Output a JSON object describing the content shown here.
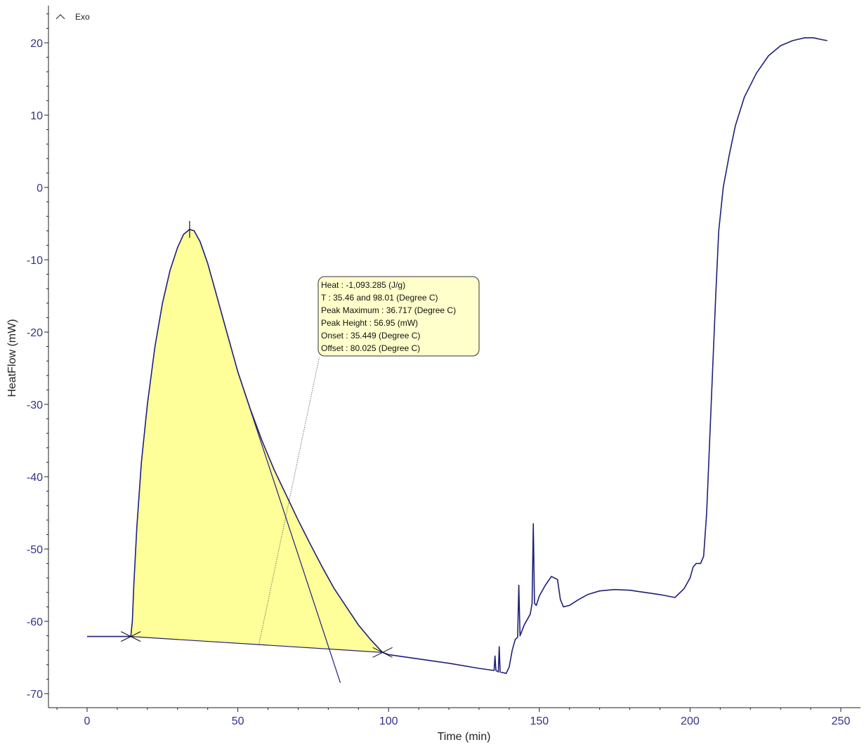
{
  "chart_data": {
    "type": "line",
    "xlabel": "Time (min)",
    "ylabel": "HeatFlow (mW)",
    "xlim": [
      -12,
      256
    ],
    "ylim": [
      -72,
      25
    ],
    "x_ticks": [
      0,
      50,
      100,
      150,
      200,
      250
    ],
    "y_ticks": [
      20,
      10,
      0,
      -10,
      -20,
      -30,
      -40,
      -50,
      -60,
      -70
    ],
    "x_tick_labels": [
      "0",
      "50",
      "100",
      "150",
      "200",
      "250"
    ],
    "y_tick_labels": [
      "20",
      "10",
      "0",
      "-10",
      "-20",
      "-30",
      "-40",
      "-50",
      "-60",
      "-70"
    ],
    "grid": false,
    "exo_label": "Exo",
    "series": [
      {
        "color": "#1f1f7a",
        "points": [
          [
            0,
            -62.1
          ],
          [
            14.5,
            -62.1
          ],
          [
            15,
            -60
          ],
          [
            15.5,
            -55
          ],
          [
            16.5,
            -47
          ],
          [
            18,
            -38
          ],
          [
            20,
            -30
          ],
          [
            22.5,
            -22
          ],
          [
            25,
            -16
          ],
          [
            27.5,
            -11.5
          ],
          [
            30,
            -8.3
          ],
          [
            32,
            -6.5
          ],
          [
            34,
            -5.8
          ],
          [
            35.5,
            -6.0
          ],
          [
            37.5,
            -7.5
          ],
          [
            40,
            -10.5
          ],
          [
            43,
            -15
          ],
          [
            46,
            -19.5
          ],
          [
            50,
            -25.5
          ],
          [
            54,
            -30.5
          ],
          [
            58,
            -35
          ],
          [
            62,
            -39
          ],
          [
            66,
            -42.5
          ],
          [
            70,
            -46
          ],
          [
            74,
            -49.3
          ],
          [
            78,
            -52.5
          ],
          [
            82,
            -55.5
          ],
          [
            86,
            -58
          ],
          [
            90,
            -60.5
          ],
          [
            94,
            -62.5
          ],
          [
            98,
            -64.3
          ],
          [
            100,
            -64.6
          ],
          [
            110,
            -65.2
          ],
          [
            120,
            -65.8
          ],
          [
            130,
            -66.5
          ],
          [
            135,
            -66.8
          ],
          [
            135.3,
            -64.8
          ],
          [
            135.6,
            -66.8
          ],
          [
            136.4,
            -67.0
          ],
          [
            136.7,
            -63.5
          ],
          [
            137,
            -67.0
          ],
          [
            138,
            -67.1
          ],
          [
            139,
            -67.2
          ],
          [
            140,
            -66.3
          ],
          [
            141,
            -64
          ],
          [
            142,
            -62.5
          ],
          [
            142.8,
            -62.2
          ],
          [
            143.2,
            -55
          ],
          [
            143.6,
            -62
          ],
          [
            145,
            -60.5
          ],
          [
            147,
            -59
          ],
          [
            147.6,
            -57.5
          ],
          [
            148,
            -46.5
          ],
          [
            148.4,
            -57.5
          ],
          [
            149,
            -57.8
          ],
          [
            150,
            -56.5
          ],
          [
            152,
            -55.0
          ],
          [
            154,
            -53.8
          ],
          [
            156,
            -54.2
          ],
          [
            157,
            -57
          ],
          [
            158,
            -58.0
          ],
          [
            160,
            -57.8
          ],
          [
            163,
            -57
          ],
          [
            166,
            -56.3
          ],
          [
            170,
            -55.8
          ],
          [
            175,
            -55.6
          ],
          [
            180,
            -55.7
          ],
          [
            185,
            -56.0
          ],
          [
            190,
            -56.3
          ],
          [
            195,
            -56.7
          ],
          [
            198,
            -55.5
          ],
          [
            200,
            -54
          ],
          [
            201,
            -52.5
          ],
          [
            202,
            -52.0
          ],
          [
            203.5,
            -52.0
          ],
          [
            204.5,
            -51
          ],
          [
            205.5,
            -45
          ],
          [
            206.5,
            -35
          ],
          [
            207.5,
            -25
          ],
          [
            208.5,
            -15
          ],
          [
            209.5,
            -6
          ],
          [
            211,
            0
          ],
          [
            213,
            4.5
          ],
          [
            215,
            8.5
          ],
          [
            218,
            12.5
          ],
          [
            222,
            15.8
          ],
          [
            226,
            18.2
          ],
          [
            230,
            19.6
          ],
          [
            234,
            20.3
          ],
          [
            238,
            20.7
          ],
          [
            241,
            20.7
          ],
          [
            243,
            20.5
          ],
          [
            245.5,
            20.3
          ]
        ]
      }
    ],
    "integration": {
      "fill_color": "#ffff99",
      "baseline_start": [
        14.5,
        -62.1
      ],
      "baseline_end": [
        98,
        -64.3
      ],
      "peak_marker": [
        34,
        -5.8
      ],
      "onset_tangent_from": [
        50,
        -25.5
      ],
      "onset_tangent_to": [
        84,
        -68.5
      ],
      "leader_from": [
        57,
        -63.2
      ],
      "leader_to": [
        77,
        -23.5
      ]
    },
    "annotation": {
      "lines": [
        "Heat :  -1,093.285 (J/g)",
        "T : 35.46 and 98.01 (Degree C)",
        "Peak Maximum :  36.717 (Degree C)",
        "Peak Height :  56.95 (mW)",
        "Onset :  35.449 (Degree C)",
        "Offset :  80.025 (Degree C)"
      ]
    }
  }
}
